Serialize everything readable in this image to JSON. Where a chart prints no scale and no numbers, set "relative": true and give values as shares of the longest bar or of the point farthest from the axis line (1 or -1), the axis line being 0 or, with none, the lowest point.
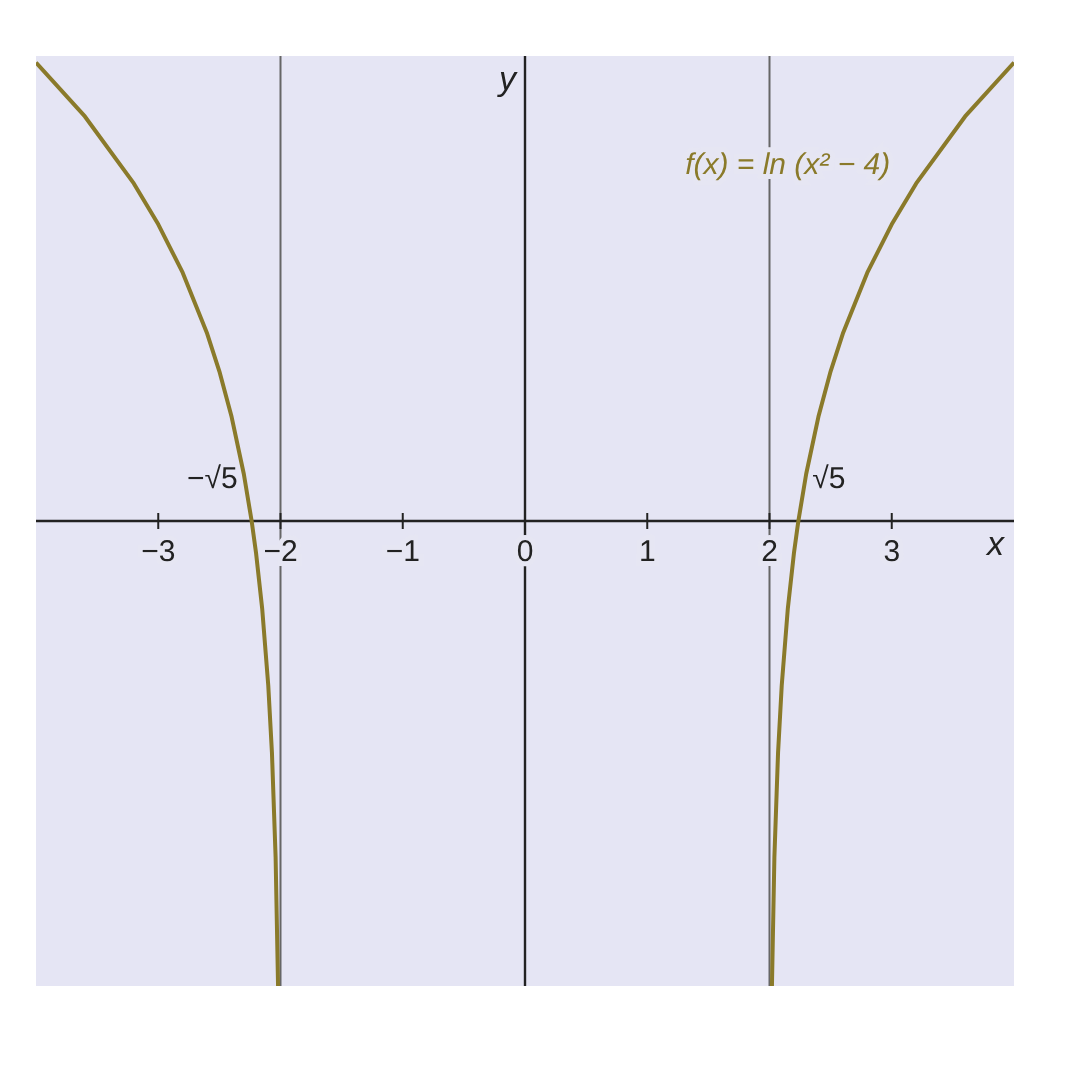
{
  "chart_data": {
    "type": "line",
    "relative": true,
    "xlabel": "x",
    "ylabel": "y",
    "xlim": [
      -4,
      4
    ],
    "xticks": [
      -3,
      -2,
      -1,
      0,
      1,
      2,
      3
    ],
    "series": [
      {
        "color": "#8a7a2a",
        "x": [
          -4,
          -3.6,
          -3.2,
          -3,
          -2.8,
          -2.6,
          -2.5,
          -2.4,
          -2.3,
          -2.236,
          -2.2,
          -2.15,
          -2.1,
          -2.07,
          -2.04,
          -2.02
        ],
        "values": [
          0.986,
          0.87,
          0.726,
          0.638,
          0.534,
          0.403,
          0.322,
          0.224,
          0.101,
          0,
          -0.069,
          -0.188,
          -0.354,
          -0.498,
          -0.723,
          -1
        ]
      },
      {
        "name": "f(x) = ln (x² − 4)",
        "color": "#8a7a2a",
        "x": [
          2.02,
          2.04,
          2.07,
          2.1,
          2.15,
          2.2,
          2.236,
          2.3,
          2.4,
          2.5,
          2.6,
          2.8,
          3,
          3.2,
          3.6,
          4
        ],
        "values": [
          -1,
          -0.723,
          -0.498,
          -0.354,
          -0.188,
          -0.069,
          0,
          0.101,
          0.224,
          0.322,
          0.403,
          0.534,
          0.638,
          0.726,
          0.87,
          0.986
        ]
      }
    ],
    "bands": [
      {
        "axis": "x",
        "from": -4,
        "to": -2,
        "color": "#d4d4ec"
      },
      {
        "axis": "x",
        "from": -2,
        "to": 2,
        "color": "#d4d4ec"
      },
      {
        "axis": "x",
        "from": 2,
        "to": 4,
        "color": "#d4d4ec"
      }
    ],
    "ref_lines": [
      {
        "axis": "x",
        "value": -2,
        "color": "#666666"
      },
      {
        "axis": "x",
        "value": 2,
        "color": "#666666"
      }
    ],
    "annotations": [
      {
        "text": "−√5",
        "x": -2.236,
        "y": 0
      },
      {
        "text": "√5",
        "x": 2.236,
        "y": 0
      }
    ],
    "grid": false,
    "legend": false,
    "line_style": "solid",
    "marker": "none"
  }
}
